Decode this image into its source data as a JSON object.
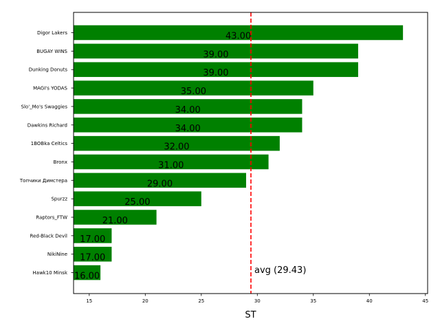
{
  "chart_data": {
    "type": "bar",
    "orientation": "horizontal",
    "categories": [
      "Digor Lakers",
      "BUGAY WINS",
      "Dunking Donuts",
      "MAGI's YODAS",
      "Slo'_Mo's Swaggies",
      "Dawkins Richard",
      "1BOBka Celtics",
      "Bronx",
      "Топчики Димстера",
      "Spurzz",
      "Raptors_FTW",
      "Red-Black Devil",
      "NikiNine",
      "Hawk10 Minsk"
    ],
    "values": [
      43,
      39,
      39,
      35,
      34,
      34,
      32,
      31,
      29,
      25,
      21,
      17,
      17,
      16
    ],
    "value_labels": [
      "43.00",
      "39.00",
      "39.00",
      "35.00",
      "34.00",
      "34.00",
      "32.00",
      "31.00",
      "29.00",
      "25.00",
      "21.00",
      "17.00",
      "17.00",
      "16.00"
    ],
    "xlabel": "ST",
    "ylabel": "",
    "title": "",
    "xlim": [
      13.6,
      45.2
    ],
    "xticks": [
      15,
      20,
      25,
      30,
      35,
      40,
      45
    ],
    "reference_line": {
      "value": 29.43,
      "label": "avg (29.43)",
      "style": "dashed",
      "color": "#ff0000"
    },
    "bar_color": "#008000",
    "grid": false
  }
}
